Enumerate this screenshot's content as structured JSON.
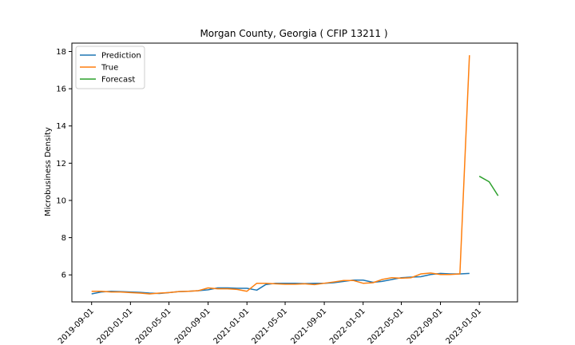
{
  "chart_data": {
    "type": "line",
    "title": "Morgan County, Georgia ( CFIP 13211 )",
    "xlabel": "",
    "ylabel": "Microbusiness Density",
    "ylim": [
      4.55,
      18.45
    ],
    "yticks": [
      6,
      8,
      10,
      12,
      14,
      16,
      18
    ],
    "xlim": [
      "2019-07-01",
      "2023-05-01"
    ],
    "xticks": [
      "2019-09-01",
      "2020-01-01",
      "2020-05-01",
      "2020-09-01",
      "2021-01-01",
      "2021-05-01",
      "2021-09-01",
      "2022-01-01",
      "2022-05-01",
      "2022-09-01",
      "2023-01-01"
    ],
    "legend_position": "top-left",
    "grid": false,
    "series": [
      {
        "name": "Prediction",
        "color": "#1f77b4",
        "points": [
          [
            "2019-09-01",
            4.98
          ],
          [
            "2019-10-01",
            5.08
          ],
          [
            "2019-11-01",
            5.12
          ],
          [
            "2019-12-01",
            5.1
          ],
          [
            "2020-01-01",
            5.08
          ],
          [
            "2020-02-01",
            5.06
          ],
          [
            "2020-03-01",
            5.02
          ],
          [
            "2020-04-01",
            5.0
          ],
          [
            "2020-05-01",
            5.05
          ],
          [
            "2020-06-01",
            5.1
          ],
          [
            "2020-07-01",
            5.12
          ],
          [
            "2020-08-01",
            5.15
          ],
          [
            "2020-09-01",
            5.2
          ],
          [
            "2020-10-01",
            5.3
          ],
          [
            "2020-11-01",
            5.3
          ],
          [
            "2020-12-01",
            5.28
          ],
          [
            "2021-01-01",
            5.28
          ],
          [
            "2021-02-01",
            5.18
          ],
          [
            "2021-03-01",
            5.48
          ],
          [
            "2021-04-01",
            5.55
          ],
          [
            "2021-05-01",
            5.55
          ],
          [
            "2021-06-01",
            5.55
          ],
          [
            "2021-07-01",
            5.53
          ],
          [
            "2021-08-01",
            5.55
          ],
          [
            "2021-09-01",
            5.55
          ],
          [
            "2021-10-01",
            5.58
          ],
          [
            "2021-11-01",
            5.65
          ],
          [
            "2021-12-01",
            5.72
          ],
          [
            "2022-01-01",
            5.72
          ],
          [
            "2022-02-01",
            5.6
          ],
          [
            "2022-03-01",
            5.65
          ],
          [
            "2022-04-01",
            5.75
          ],
          [
            "2022-05-01",
            5.85
          ],
          [
            "2022-06-01",
            5.88
          ],
          [
            "2022-07-01",
            5.9
          ],
          [
            "2022-08-01",
            6.02
          ],
          [
            "2022-09-01",
            6.08
          ],
          [
            "2022-10-01",
            6.05
          ],
          [
            "2022-11-01",
            6.05
          ],
          [
            "2022-12-01",
            6.08
          ]
        ]
      },
      {
        "name": "True",
        "color": "#ff7f0e",
        "points": [
          [
            "2019-09-01",
            5.12
          ],
          [
            "2019-10-01",
            5.12
          ],
          [
            "2019-11-01",
            5.08
          ],
          [
            "2019-12-01",
            5.08
          ],
          [
            "2020-01-01",
            5.05
          ],
          [
            "2020-02-01",
            5.02
          ],
          [
            "2020-03-01",
            4.98
          ],
          [
            "2020-04-01",
            5.02
          ],
          [
            "2020-05-01",
            5.05
          ],
          [
            "2020-06-01",
            5.1
          ],
          [
            "2020-07-01",
            5.12
          ],
          [
            "2020-08-01",
            5.15
          ],
          [
            "2020-09-01",
            5.3
          ],
          [
            "2020-10-01",
            5.25
          ],
          [
            "2020-11-01",
            5.25
          ],
          [
            "2020-12-01",
            5.22
          ],
          [
            "2021-01-01",
            5.12
          ],
          [
            "2021-02-01",
            5.55
          ],
          [
            "2021-03-01",
            5.55
          ],
          [
            "2021-04-01",
            5.52
          ],
          [
            "2021-05-01",
            5.5
          ],
          [
            "2021-06-01",
            5.5
          ],
          [
            "2021-07-01",
            5.52
          ],
          [
            "2021-08-01",
            5.48
          ],
          [
            "2021-09-01",
            5.55
          ],
          [
            "2021-10-01",
            5.62
          ],
          [
            "2021-11-01",
            5.7
          ],
          [
            "2021-12-01",
            5.7
          ],
          [
            "2022-01-01",
            5.55
          ],
          [
            "2022-02-01",
            5.58
          ],
          [
            "2022-03-01",
            5.75
          ],
          [
            "2022-04-01",
            5.85
          ],
          [
            "2022-05-01",
            5.82
          ],
          [
            "2022-06-01",
            5.85
          ],
          [
            "2022-07-01",
            6.05
          ],
          [
            "2022-08-01",
            6.1
          ],
          [
            "2022-09-01",
            6.02
          ],
          [
            "2022-10-01",
            6.02
          ],
          [
            "2022-11-01",
            6.05
          ],
          [
            "2022-12-01",
            17.8
          ]
        ]
      },
      {
        "name": "Forecast",
        "color": "#2ca02c",
        "points": [
          [
            "2023-01-01",
            11.3
          ],
          [
            "2023-02-01",
            11.0
          ],
          [
            "2023-03-01",
            10.25
          ]
        ]
      }
    ]
  }
}
